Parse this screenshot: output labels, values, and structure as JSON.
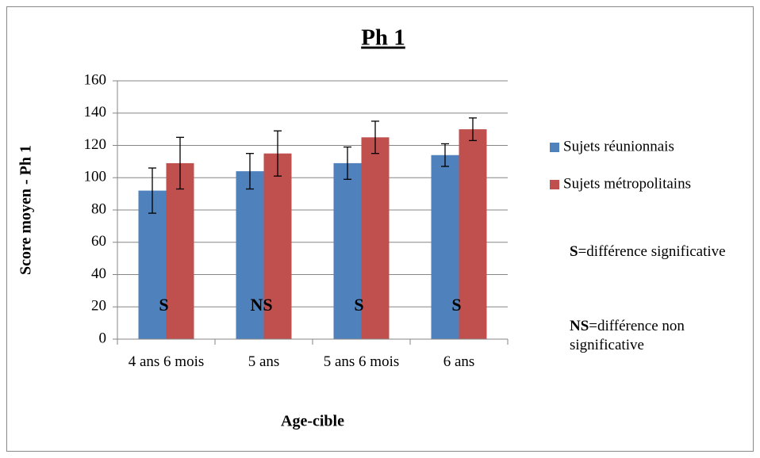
{
  "chart_data": {
    "type": "bar",
    "title": "Ph 1",
    "x_label": "Age-cible",
    "y_label": "Score moyen - Ph 1",
    "categories": [
      "4 ans 6 mois",
      "5 ans",
      "5 ans 6 mois",
      "6 ans"
    ],
    "series": [
      {
        "name": "Sujets réunionnais",
        "color": "#4f81bd",
        "values": [
          92,
          104,
          109,
          114
        ],
        "errors": [
          14,
          11,
          10,
          7
        ]
      },
      {
        "name": "Sujets métropolitains",
        "color": "#c0504d",
        "values": [
          109,
          115,
          125,
          130
        ],
        "errors": [
          16,
          14,
          10,
          7
        ]
      }
    ],
    "annotations": [
      "S",
      "NS",
      "S",
      "S"
    ],
    "notes": [
      {
        "bold": "S",
        "text": "=différence significative"
      },
      {
        "bold": "NS",
        "text": "=différence non significative"
      }
    ],
    "ylim": [
      0,
      160
    ],
    "yticks": [
      0,
      20,
      40,
      60,
      80,
      100,
      120,
      140,
      160
    ],
    "grid": true
  }
}
